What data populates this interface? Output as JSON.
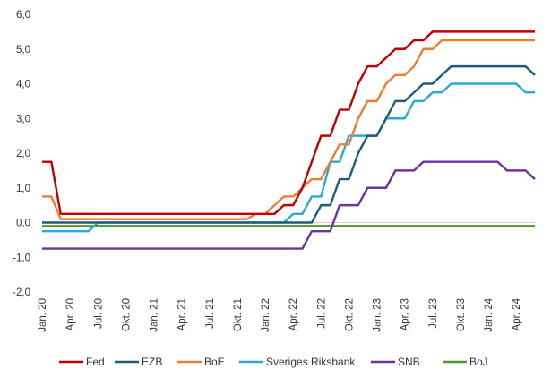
{
  "chart_data": {
    "type": "line",
    "title": "",
    "xlabel": "",
    "ylabel": "",
    "ylim": [
      -2.0,
      6.0
    ],
    "yticks": [
      "-2,0",
      "-1,0",
      "0,0",
      "1,0",
      "2,0",
      "3,0",
      "4,0",
      "5,0",
      "6,0"
    ],
    "grid": false,
    "legend_position": "bottom",
    "x_start": "2020-01",
    "x_end": "2024-06",
    "x_tick_labels": [
      {
        "date": "2020-01",
        "label": "Jan. 20"
      },
      {
        "date": "2020-04",
        "label": "Apr. 20"
      },
      {
        "date": "2020-07",
        "label": "Jul. 20"
      },
      {
        "date": "2020-10",
        "label": "Okt. 20"
      },
      {
        "date": "2021-01",
        "label": "Jan. 21"
      },
      {
        "date": "2021-04",
        "label": "Apr. 21"
      },
      {
        "date": "2021-07",
        "label": "Jul. 21"
      },
      {
        "date": "2021-10",
        "label": "Okt. 21"
      },
      {
        "date": "2022-01",
        "label": "Jan. 22"
      },
      {
        "date": "2022-04",
        "label": "Apr. 22"
      },
      {
        "date": "2022-07",
        "label": "Jul. 22"
      },
      {
        "date": "2022-10",
        "label": "Okt. 22"
      },
      {
        "date": "2023-01",
        "label": "Jan. 23"
      },
      {
        "date": "2023-04",
        "label": "Apr. 23"
      },
      {
        "date": "2023-07",
        "label": "Jul. 23"
      },
      {
        "date": "2023-10",
        "label": "Okt. 23"
      },
      {
        "date": "2024-01",
        "label": "Jan. 24"
      },
      {
        "date": "2024-04",
        "label": "Apr. 24"
      }
    ],
    "series": [
      {
        "name": "Fed",
        "color": "#c00000",
        "points": [
          [
            "2020-01",
            1.75
          ],
          [
            "2020-02",
            1.75
          ],
          [
            "2020-03",
            0.25
          ],
          [
            "2022-02",
            0.25
          ],
          [
            "2022-03",
            0.5
          ],
          [
            "2022-04",
            0.5
          ],
          [
            "2022-05",
            1.0
          ],
          [
            "2022-06",
            1.75
          ],
          [
            "2022-07",
            2.5
          ],
          [
            "2022-08",
            2.5
          ],
          [
            "2022-09",
            3.25
          ],
          [
            "2022-10",
            3.25
          ],
          [
            "2022-11",
            4.0
          ],
          [
            "2022-12",
            4.5
          ],
          [
            "2023-01",
            4.5
          ],
          [
            "2023-02",
            4.75
          ],
          [
            "2023-03",
            5.0
          ],
          [
            "2023-04",
            5.0
          ],
          [
            "2023-05",
            5.25
          ],
          [
            "2023-06",
            5.25
          ],
          [
            "2023-07",
            5.5
          ],
          [
            "2024-06",
            5.5
          ]
        ]
      },
      {
        "name": "EZB",
        "color": "#1f5c7a",
        "points": [
          [
            "2020-01",
            0.0
          ],
          [
            "2022-06",
            0.0
          ],
          [
            "2022-07",
            0.5
          ],
          [
            "2022-08",
            0.5
          ],
          [
            "2022-09",
            1.25
          ],
          [
            "2022-10",
            1.25
          ],
          [
            "2022-11",
            2.0
          ],
          [
            "2022-12",
            2.5
          ],
          [
            "2023-01",
            2.5
          ],
          [
            "2023-02",
            3.0
          ],
          [
            "2023-03",
            3.5
          ],
          [
            "2023-04",
            3.5
          ],
          [
            "2023-05",
            3.75
          ],
          [
            "2023-06",
            4.0
          ],
          [
            "2023-07",
            4.0
          ],
          [
            "2023-08",
            4.25
          ],
          [
            "2023-09",
            4.5
          ],
          [
            "2024-05",
            4.5
          ],
          [
            "2024-06",
            4.25
          ]
        ]
      },
      {
        "name": "BoE",
        "color": "#ed7d31",
        "points": [
          [
            "2020-01",
            0.75
          ],
          [
            "2020-02",
            0.75
          ],
          [
            "2020-03",
            0.1
          ],
          [
            "2021-11",
            0.1
          ],
          [
            "2021-12",
            0.25
          ],
          [
            "2022-01",
            0.25
          ],
          [
            "2022-02",
            0.5
          ],
          [
            "2022-03",
            0.75
          ],
          [
            "2022-04",
            0.75
          ],
          [
            "2022-05",
            1.0
          ],
          [
            "2022-06",
            1.25
          ],
          [
            "2022-07",
            1.25
          ],
          [
            "2022-08",
            1.75
          ],
          [
            "2022-09",
            2.25
          ],
          [
            "2022-10",
            2.25
          ],
          [
            "2022-11",
            3.0
          ],
          [
            "2022-12",
            3.5
          ],
          [
            "2023-01",
            3.5
          ],
          [
            "2023-02",
            4.0
          ],
          [
            "2023-03",
            4.25
          ],
          [
            "2023-04",
            4.25
          ],
          [
            "2023-05",
            4.5
          ],
          [
            "2023-06",
            5.0
          ],
          [
            "2023-07",
            5.0
          ],
          [
            "2023-08",
            5.25
          ],
          [
            "2024-06",
            5.25
          ]
        ]
      },
      {
        "name": "Sveriges Riksbank",
        "color": "#2aa8d8",
        "points": [
          [
            "2020-01",
            -0.25
          ],
          [
            "2020-06",
            -0.25
          ],
          [
            "2020-07",
            0.0
          ],
          [
            "2022-03",
            0.0
          ],
          [
            "2022-04",
            0.25
          ],
          [
            "2022-05",
            0.25
          ],
          [
            "2022-06",
            0.75
          ],
          [
            "2022-07",
            0.75
          ],
          [
            "2022-08",
            1.75
          ],
          [
            "2022-09",
            1.75
          ],
          [
            "2022-10",
            2.5
          ],
          [
            "2022-11",
            2.5
          ],
          [
            "2022-12",
            2.5
          ],
          [
            "2023-01",
            2.5
          ],
          [
            "2023-02",
            3.0
          ],
          [
            "2023-03",
            3.0
          ],
          [
            "2023-04",
            3.0
          ],
          [
            "2023-05",
            3.5
          ],
          [
            "2023-06",
            3.5
          ],
          [
            "2023-07",
            3.75
          ],
          [
            "2023-08",
            3.75
          ],
          [
            "2023-09",
            4.0
          ],
          [
            "2024-04",
            4.0
          ],
          [
            "2024-05",
            3.75
          ],
          [
            "2024-06",
            3.75
          ]
        ]
      },
      {
        "name": "SNB",
        "color": "#7030a0",
        "points": [
          [
            "2020-01",
            -0.75
          ],
          [
            "2022-05",
            -0.75
          ],
          [
            "2022-06",
            -0.25
          ],
          [
            "2022-07",
            -0.25
          ],
          [
            "2022-08",
            -0.25
          ],
          [
            "2022-09",
            0.5
          ],
          [
            "2022-10",
            0.5
          ],
          [
            "2022-11",
            0.5
          ],
          [
            "2022-12",
            1.0
          ],
          [
            "2023-01",
            1.0
          ],
          [
            "2023-02",
            1.0
          ],
          [
            "2023-03",
            1.5
          ],
          [
            "2023-04",
            1.5
          ],
          [
            "2023-05",
            1.5
          ],
          [
            "2023-06",
            1.75
          ],
          [
            "2024-02",
            1.75
          ],
          [
            "2024-03",
            1.5
          ],
          [
            "2024-04",
            1.5
          ],
          [
            "2024-05",
            1.5
          ],
          [
            "2024-06",
            1.25
          ]
        ]
      },
      {
        "name": "BoJ",
        "color": "#4f9a2a",
        "points": [
          [
            "2020-01",
            -0.1
          ],
          [
            "2024-06",
            -0.1
          ]
        ]
      }
    ]
  }
}
